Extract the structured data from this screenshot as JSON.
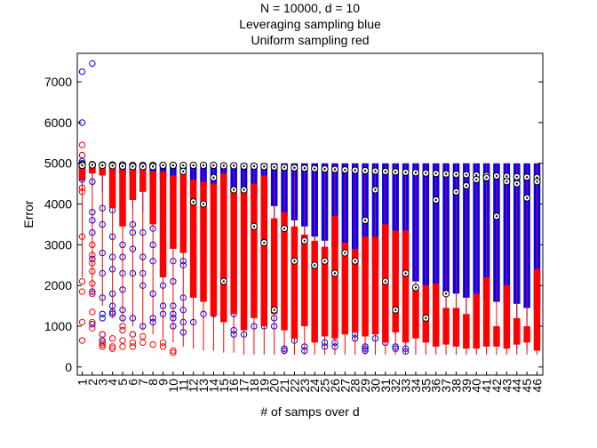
{
  "chart_data": {
    "type": "box",
    "title": [
      "N = 10000, d = 10",
      "Leveraging sampling blue",
      "Uniform sampling red"
    ],
    "xlabel": "# of samps over d",
    "ylabel": "Error",
    "ylim": [
      -200,
      7700
    ],
    "yticks": [
      0,
      1000,
      2000,
      3000,
      4000,
      5000,
      6000,
      7000
    ],
    "categories": [
      "1",
      "2",
      "3",
      "4",
      "5",
      "6",
      "7",
      "8",
      "9",
      "10",
      "11",
      "12",
      "13",
      "14",
      "15",
      "16",
      "17",
      "18",
      "19",
      "20",
      "21",
      "22",
      "23",
      "24",
      "25",
      "26",
      "27",
      "28",
      "29",
      "30",
      "31",
      "32",
      "33",
      "34",
      "35",
      "36",
      "37",
      "38",
      "39",
      "40",
      "41",
      "42",
      "43",
      "44",
      "45",
      "46"
    ],
    "grid": false,
    "series": [
      {
        "name": "Leveraging sampling",
        "color": "#0000ff",
        "q1": [
          4850,
          4850,
          4800,
          4750,
          4750,
          4700,
          4700,
          4650,
          4600,
          4550,
          4500,
          4500,
          4450,
          4400,
          4400,
          4300,
          4250,
          4150,
          4100,
          3950,
          3700,
          3600,
          3450,
          3200,
          3100,
          2950,
          2850,
          2700,
          2600,
          2500,
          2400,
          2300,
          2200,
          2100,
          2000,
          1950,
          1850,
          1800,
          1700,
          1700,
          1650,
          1600,
          1550,
          1550,
          1450,
          1400
        ],
        "q3": [
          5000,
          5000,
          5000,
          5000,
          5000,
          5000,
          5000,
          5000,
          5000,
          5000,
          5000,
          5000,
          5000,
          5000,
          5000,
          5000,
          5000,
          5000,
          5000,
          5000,
          5000,
          5000,
          5000,
          5000,
          5000,
          5000,
          5000,
          5000,
          5000,
          5000,
          5000,
          5000,
          5000,
          5000,
          5000,
          5000,
          5000,
          5000,
          5000,
          5000,
          5000,
          5000,
          5000,
          5000,
          5000,
          5000
        ],
        "median": [
          4980,
          4970,
          4960,
          4960,
          4960,
          4955,
          4950,
          4950,
          4950,
          4950,
          4950,
          4950,
          4950,
          4950,
          4940,
          4940,
          4930,
          4930,
          4920,
          4910,
          4900,
          4890,
          4880,
          4870,
          4860,
          4850,
          4840,
          4830,
          4820,
          4810,
          4800,
          4790,
          4780,
          4770,
          4760,
          4750,
          4740,
          4730,
          4720,
          4710,
          4700,
          4690,
          4680,
          4670,
          4660,
          4650
        ],
        "whisker_low": [
          4600,
          4400,
          4300,
          4100,
          4000,
          3900,
          3800,
          3700,
          3600,
          3500,
          3400,
          3300,
          3200,
          3100,
          3000,
          2900,
          2800,
          2600,
          2400,
          2300,
          2100,
          1900,
          1800,
          1600,
          1500,
          1400,
          1300,
          1200,
          1100,
          1000,
          900,
          800,
          800,
          750,
          700,
          650,
          600,
          550,
          500,
          500,
          480,
          460,
          450,
          440,
          430,
          420
        ],
        "whisker_high": [
          5000,
          5000,
          5000,
          5000,
          5000,
          5000,
          5000,
          5000,
          5000,
          5000,
          5000,
          5000,
          5000,
          5000,
          5000,
          5000,
          5000,
          5000,
          5000,
          5000,
          5000,
          5000,
          5000,
          5000,
          5000,
          5000,
          5000,
          5000,
          5000,
          5000,
          5000,
          5000,
          5000,
          5000,
          5000,
          5000,
          5000,
          5000,
          5000,
          5000,
          5000,
          5000,
          5000,
          5000,
          5000,
          5000
        ],
        "outliers": [
          [
            4600,
            5000,
            4900,
            5050,
            7250,
            6000,
            5200,
            4750,
            4700,
            4650
          ],
          [
            7450,
            4850,
            4550,
            3800,
            3600,
            3300,
            2650,
            1850,
            1050
          ],
          [
            3900,
            3500,
            2800,
            2300,
            1700,
            1300,
            1200,
            800,
            650
          ],
          [
            3850,
            3200,
            2700,
            2400,
            1800,
            1500,
            1350,
            1300
          ],
          [
            3000,
            2700,
            2300,
            1900,
            1400,
            1200
          ],
          [
            3500,
            3300,
            2900,
            2300,
            1200,
            800
          ],
          [
            3300,
            2700,
            2300,
            2000,
            1000
          ],
          [
            3400,
            3000,
            2600,
            1800,
            1200,
            1100
          ],
          [
            3600,
            3300,
            2600,
            2000,
            1500,
            1300
          ],
          [
            4200,
            3700,
            3100,
            2600,
            2100,
            1500,
            1300,
            1200,
            1000
          ],
          [
            3700,
            3100,
            2600,
            2500,
            1700,
            1400,
            1100,
            850
          ],
          [
            3400,
            3000,
            2600,
            2200,
            1800,
            1100
          ],
          [
            3800,
            3400,
            2800,
            2400,
            1900,
            1300
          ],
          [
            3500,
            3100,
            2600,
            1800,
            1300
          ],
          [
            3300,
            2800,
            2400,
            1900,
            1200
          ],
          [
            3100,
            2600,
            2200,
            1300,
            900,
            800
          ],
          [
            2900,
            2400,
            2000,
            1500,
            800
          ],
          [
            2700,
            2200,
            1600,
            1000
          ],
          [
            2400,
            1900,
            1500,
            1000
          ],
          [
            1200,
            1000
          ],
          [
            450,
            400
          ],
          [
            650
          ],
          [
            500,
            400
          ],
          [
            800
          ],
          [
            600,
            500
          ],
          [
            900,
            800,
            600,
            500
          ],
          [],
          [
            800,
            700
          ],
          [
            500,
            450,
            400
          ],
          [
            700
          ],
          [
            600
          ],
          [
            500,
            450
          ],
          [
            450,
            380
          ],
          [],
          [],
          [],
          [
            1000
          ],
          [],
          [
            2450
          ],
          [],
          [],
          [],
          [],
          [],
          [],
          []
        ]
      },
      {
        "name": "Uniform sampling",
        "color": "#ff0000",
        "q1": [
          4600,
          4750,
          4700,
          3900,
          3450,
          4100,
          4300,
          3500,
          2200,
          2900,
          2800,
          1700,
          1600,
          1250,
          1100,
          1300,
          900,
          1200,
          1000,
          1300,
          900,
          700,
          1000,
          600,
          750,
          700,
          800,
          850,
          750,
          800,
          600,
          850,
          600,
          700,
          600,
          500,
          550,
          500,
          450,
          450,
          500,
          500,
          450,
          550,
          600,
          400
        ],
        "q3": [
          4950,
          4950,
          4900,
          4950,
          4850,
          4850,
          4850,
          4800,
          4800,
          4700,
          4800,
          4600,
          4550,
          4500,
          4750,
          4400,
          4350,
          4500,
          4700,
          3650,
          3800,
          3450,
          3250,
          3100,
          2950,
          3700,
          3050,
          2900,
          3200,
          3200,
          3500,
          3350,
          3350,
          1900,
          2000,
          2050,
          1450,
          1450,
          1300,
          1800,
          2200,
          1000,
          2000,
          1200,
          1000,
          2400
        ],
        "median": [
          4700,
          4900,
          4800,
          4500,
          4300,
          4700,
          4500,
          4200,
          3600,
          4400,
          4400,
          3700,
          3500,
          4000,
          3400,
          3900,
          3400,
          3300,
          3300,
          2700,
          2600,
          2300,
          2200,
          2100,
          1900,
          2200,
          1900,
          1800,
          1600,
          1500,
          1600,
          1400,
          1300,
          1200,
          1200,
          1100,
          1000,
          1000,
          900,
          900,
          1000,
          800,
          800,
          800,
          800,
          900
        ],
        "whisker_low": [
          2200,
          1800,
          1500,
          1200,
          1100,
          1000,
          900,
          800,
          700,
          600,
          500,
          450,
          400,
          400,
          350,
          350,
          300,
          300,
          300,
          300,
          300,
          300,
          300,
          300,
          300,
          300,
          300,
          300,
          300,
          300,
          300,
          300,
          300,
          300,
          300,
          300,
          300,
          300,
          300,
          300,
          300,
          300,
          300,
          300,
          300,
          300
        ],
        "whisker_high": [
          5000,
          5000,
          5000,
          5000,
          5000,
          5000,
          5000,
          5000,
          5000,
          5000,
          5000,
          5000,
          5000,
          5000,
          5000,
          5000,
          5000,
          5000,
          5000,
          5000,
          5000,
          5000,
          5000,
          5000,
          5000,
          5000,
          5000,
          5000,
          5000,
          5000,
          5000,
          5000,
          5000,
          5000,
          5000,
          5000,
          5000,
          5000,
          5000,
          5000,
          5000,
          5000,
          5000,
          5000,
          5000,
          5000
        ],
        "outliers": [
          [
            5450,
            5200,
            4400,
            4300,
            3200,
            2100,
            1850,
            1100,
            650
          ],
          [
            3000,
            2750,
            2550,
            2350,
            2050,
            1800,
            1350,
            1100,
            950
          ],
          [
            800,
            600,
            550,
            500
          ],
          [
            700,
            500,
            450
          ],
          [
            1000,
            900,
            650,
            500
          ],
          [
            800,
            600,
            500
          ],
          [
            750,
            600
          ],
          [
            550
          ],
          [
            600,
            500
          ],
          [
            400,
            350
          ],
          [],
          [],
          [],
          [],
          [],
          [],
          [],
          [],
          [],
          [],
          [],
          [],
          [],
          [],
          [],
          [],
          [],
          [],
          [],
          [],
          [],
          [],
          [],
          [],
          [],
          [],
          [],
          [],
          [],
          [],
          [],
          [],
          [],
          [],
          [],
          []
        ]
      }
    ],
    "marked_points": [
      4980,
      4970,
      4960,
      4960,
      4960,
      4950,
      4950,
      4950,
      4950,
      4950,
      4950,
      4950,
      4950,
      4950,
      4940,
      4940,
      4930,
      4930,
      4920,
      4910,
      4900,
      4890,
      4880,
      4870,
      4860,
      4850,
      4840,
      4830,
      4820,
      4810,
      4800,
      4790,
      4780,
      4770,
      4760,
      4750,
      4740,
      4730,
      4720,
      4710,
      4700,
      4690,
      4680,
      4670,
      4660,
      4650
    ],
    "mean_points": [
      4950,
      4960,
      4950,
      4940,
      4930,
      4920,
      4920,
      4920,
      4950,
      4950,
      4800,
      4050,
      4000,
      4650,
      2100,
      4350,
      4350,
      3450,
      3050,
      1400,
      3400,
      2600,
      3100,
      2500,
      2600,
      2300,
      2800,
      2600,
      3600,
      4350,
      2100,
      1400,
      2300,
      1950,
      1200,
      4100,
      1800,
      4300,
      4450,
      4600,
      4650,
      3700,
      4550,
      4500,
      4150,
      4550
    ]
  },
  "colors": {
    "leveraging": "#0000ff",
    "uniform": "#ff0000",
    "axes": "#000000"
  }
}
